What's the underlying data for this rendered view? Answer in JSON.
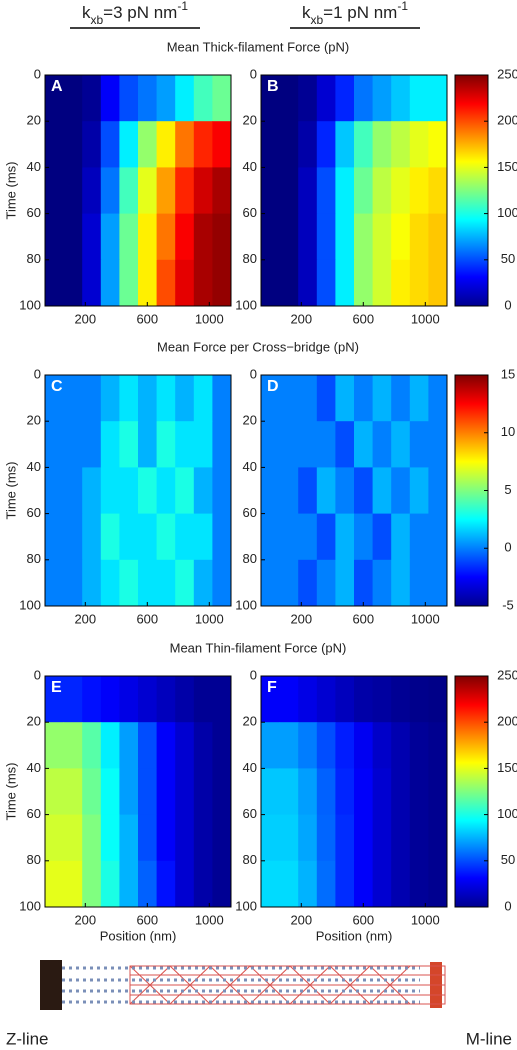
{
  "columns": [
    {
      "k": "k",
      "sub": "xb",
      "rest": "=3 pN nm",
      "sup": "-1"
    },
    {
      "k": "k",
      "sub": "xb",
      "rest": "=1 pN nm",
      "sup": "-1"
    }
  ],
  "sections": [
    "Mean Thick-filament Force (pN)",
    "Mean Force per Cross−bridge (pN)",
    "Mean Thin-filament Force (pN)"
  ],
  "chart_data": [
    {
      "type": "heatmap",
      "label": "A",
      "ylabel": "Time (ms)",
      "xlim": [
        -60,
        1140
      ],
      "xticks": [
        200,
        600,
        1000
      ],
      "ylim": [
        0,
        100
      ],
      "yticks": [
        0,
        20,
        40,
        60,
        80,
        100
      ],
      "xbins": [
        -60,
        60,
        180,
        300,
        420,
        540,
        660,
        780,
        900,
        1020,
        1140
      ],
      "ybins": [
        0,
        20,
        40,
        60,
        80,
        100
      ],
      "zlim": [
        0,
        250
      ],
      "z": [
        [
          0,
          0,
          5,
          30,
          50,
          60,
          70,
          90,
          110,
          120
        ],
        [
          0,
          0,
          10,
          50,
          90,
          130,
          160,
          190,
          210,
          220
        ],
        [
          0,
          0,
          15,
          60,
          110,
          150,
          180,
          210,
          230,
          240
        ],
        [
          0,
          0,
          20,
          70,
          120,
          160,
          190,
          220,
          240,
          245
        ],
        [
          0,
          0,
          20,
          70,
          120,
          160,
          200,
          225,
          240,
          245
        ]
      ]
    },
    {
      "type": "heatmap",
      "label": "B",
      "xlim": [
        -60,
        1140
      ],
      "xticks": [
        200,
        600,
        1000
      ],
      "ylim": [
        0,
        100
      ],
      "yticks": [
        0,
        20,
        40,
        60,
        80,
        100
      ],
      "xbins": [
        -60,
        60,
        180,
        300,
        420,
        540,
        660,
        780,
        900,
        1020,
        1140
      ],
      "ybins": [
        0,
        20,
        40,
        60,
        80,
        100
      ],
      "zlim": [
        0,
        250
      ],
      "zticks": [
        0,
        50,
        100,
        150,
        200,
        250
      ],
      "z": [
        [
          0,
          0,
          5,
          20,
          40,
          60,
          70,
          80,
          90,
          90
        ],
        [
          0,
          0,
          10,
          40,
          80,
          110,
          130,
          140,
          150,
          155
        ],
        [
          0,
          0,
          15,
          50,
          90,
          120,
          140,
          150,
          160,
          165
        ],
        [
          0,
          0,
          15,
          50,
          90,
          130,
          145,
          155,
          165,
          170
        ],
        [
          0,
          0,
          15,
          50,
          90,
          130,
          145,
          160,
          165,
          170
        ]
      ]
    },
    {
      "type": "heatmap",
      "label": "C",
      "ylabel": "Time (ms)",
      "xlim": [
        -60,
        1140
      ],
      "xticks": [
        200,
        600,
        1000
      ],
      "ylim": [
        0,
        100
      ],
      "yticks": [
        0,
        20,
        40,
        60,
        80,
        100
      ],
      "xbins": [
        -60,
        60,
        180,
        300,
        420,
        540,
        660,
        780,
        900,
        1020,
        1140
      ],
      "ybins": [
        0,
        20,
        40,
        60,
        80,
        100
      ],
      "zlim": [
        -5,
        15
      ],
      "z": [
        [
          0,
          0,
          0,
          1,
          2,
          1,
          2,
          1,
          2,
          0
        ],
        [
          0,
          0,
          0,
          2,
          3,
          1,
          3,
          2,
          2,
          0
        ],
        [
          0,
          0,
          1,
          2,
          2,
          3,
          2,
          3,
          1,
          0
        ],
        [
          0,
          0,
          1,
          3,
          2,
          2,
          3,
          2,
          2,
          0
        ],
        [
          0,
          0,
          1,
          2,
          3,
          2,
          2,
          3,
          1,
          0
        ]
      ]
    },
    {
      "type": "heatmap",
      "label": "D",
      "xlim": [
        -60,
        1140
      ],
      "xticks": [
        200,
        600,
        1000
      ],
      "ylim": [
        0,
        100
      ],
      "yticks": [
        0,
        20,
        40,
        60,
        80,
        100
      ],
      "xbins": [
        -60,
        60,
        180,
        300,
        420,
        540,
        660,
        780,
        900,
        1020,
        1140
      ],
      "ybins": [
        0,
        20,
        40,
        60,
        80,
        100
      ],
      "zlim": [
        -5,
        15
      ],
      "zticks": [
        -5,
        0,
        5,
        10,
        15
      ],
      "z": [
        [
          0,
          0,
          0,
          -1,
          1,
          0,
          1,
          0,
          1,
          0
        ],
        [
          0,
          0,
          0,
          0,
          -1,
          1,
          0,
          1,
          0,
          0
        ],
        [
          0,
          0,
          -1,
          1,
          0,
          -1,
          1,
          0,
          1,
          0
        ],
        [
          0,
          0,
          0,
          -1,
          1,
          0,
          -1,
          1,
          0,
          0
        ],
        [
          0,
          0,
          -1,
          0,
          1,
          -1,
          0,
          1,
          0,
          0
        ]
      ]
    },
    {
      "type": "heatmap",
      "label": "E",
      "ylabel": "Time (ms)",
      "xlabel": "Position (nm)",
      "xlim": [
        -60,
        1140
      ],
      "xticks": [
        200,
        600,
        1000
      ],
      "ylim": [
        0,
        100
      ],
      "yticks": [
        0,
        20,
        40,
        60,
        80,
        100
      ],
      "xbins": [
        -60,
        60,
        180,
        300,
        420,
        540,
        660,
        780,
        900,
        1020,
        1140
      ],
      "ybins": [
        0,
        20,
        40,
        60,
        80,
        100
      ],
      "zlim": [
        0,
        250
      ],
      "z": [
        [
          40,
          40,
          35,
          30,
          25,
          20,
          15,
          10,
          5,
          5
        ],
        [
          130,
          130,
          115,
          90,
          70,
          50,
          30,
          20,
          10,
          5
        ],
        [
          140,
          140,
          120,
          95,
          70,
          50,
          30,
          20,
          10,
          5
        ],
        [
          145,
          145,
          125,
          95,
          75,
          50,
          30,
          20,
          10,
          5
        ],
        [
          150,
          150,
          125,
          100,
          75,
          55,
          35,
          20,
          10,
          5
        ]
      ]
    },
    {
      "type": "heatmap",
      "label": "F",
      "xlabel": "Position (nm)",
      "xlim": [
        -60,
        1140
      ],
      "xticks": [
        200,
        600,
        1000
      ],
      "ylim": [
        0,
        100
      ],
      "yticks": [
        0,
        20,
        40,
        60,
        80,
        100
      ],
      "xbins": [
        -60,
        60,
        180,
        300,
        420,
        540,
        660,
        780,
        900,
        1020,
        1140
      ],
      "ybins": [
        0,
        20,
        40,
        60,
        80,
        100
      ],
      "zlim": [
        0,
        250
      ],
      "zticks": [
        0,
        50,
        100,
        150,
        200,
        250
      ],
      "z": [
        [
          30,
          30,
          25,
          20,
          15,
          10,
          8,
          5,
          3,
          2
        ],
        [
          70,
          70,
          62,
          50,
          38,
          28,
          18,
          12,
          6,
          4
        ],
        [
          80,
          80,
          70,
          55,
          40,
          30,
          20,
          12,
          6,
          4
        ],
        [
          82,
          82,
          72,
          56,
          42,
          30,
          20,
          12,
          6,
          4
        ],
        [
          85,
          85,
          75,
          58,
          42,
          30,
          20,
          12,
          6,
          4
        ]
      ]
    }
  ],
  "ends": [
    "Z-line",
    "M-line"
  ]
}
